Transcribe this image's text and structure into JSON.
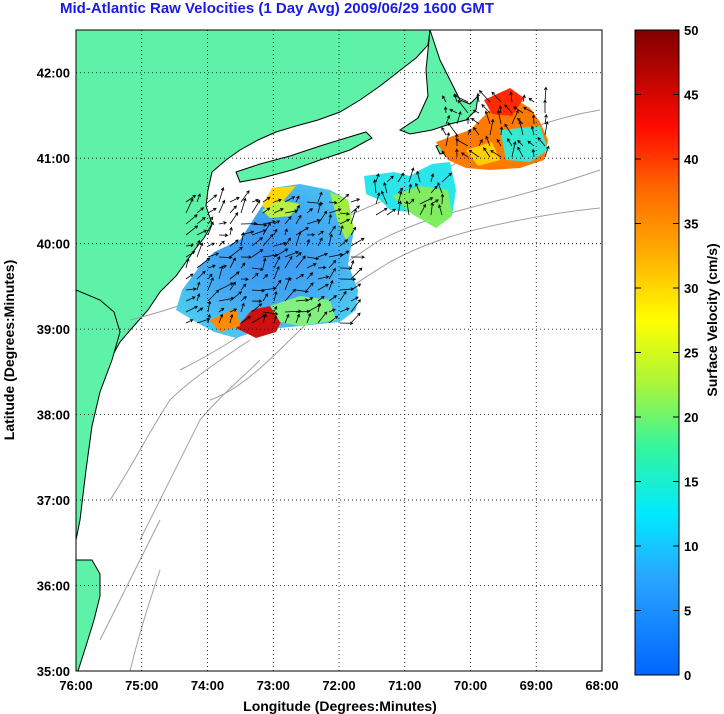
{
  "title": "Mid-Atlantic Raw Velocities (1 Day Avg) 2009/06/29 1600 GMT",
  "map": {
    "xlabel": "Longitude (Degrees:Minutes)",
    "ylabel": "Latitude (Degrees:Minutes)",
    "x_ticks": [
      "76:00",
      "75:00",
      "74:00",
      "73:00",
      "72:00",
      "71:00",
      "70:00",
      "69:00",
      "68:00"
    ],
    "y_ticks": [
      "42:00",
      "41:00",
      "40:00",
      "39:00",
      "38:00",
      "37:00",
      "36:00",
      "35:00"
    ],
    "lon_range": [
      -76,
      -68
    ],
    "lat_range": [
      35,
      42.5
    ],
    "land_color": "#5ef2a8",
    "contour_color": "#a0a0a0",
    "grid": "dotted"
  },
  "colorbar": {
    "label": "Surface Velocity (cm/s)",
    "ticks": [
      "50",
      "45",
      "40",
      "35",
      "30",
      "25",
      "20",
      "15",
      "10",
      "5",
      "0"
    ],
    "range": [
      0,
      50
    ],
    "colormap": "jet"
  }
}
